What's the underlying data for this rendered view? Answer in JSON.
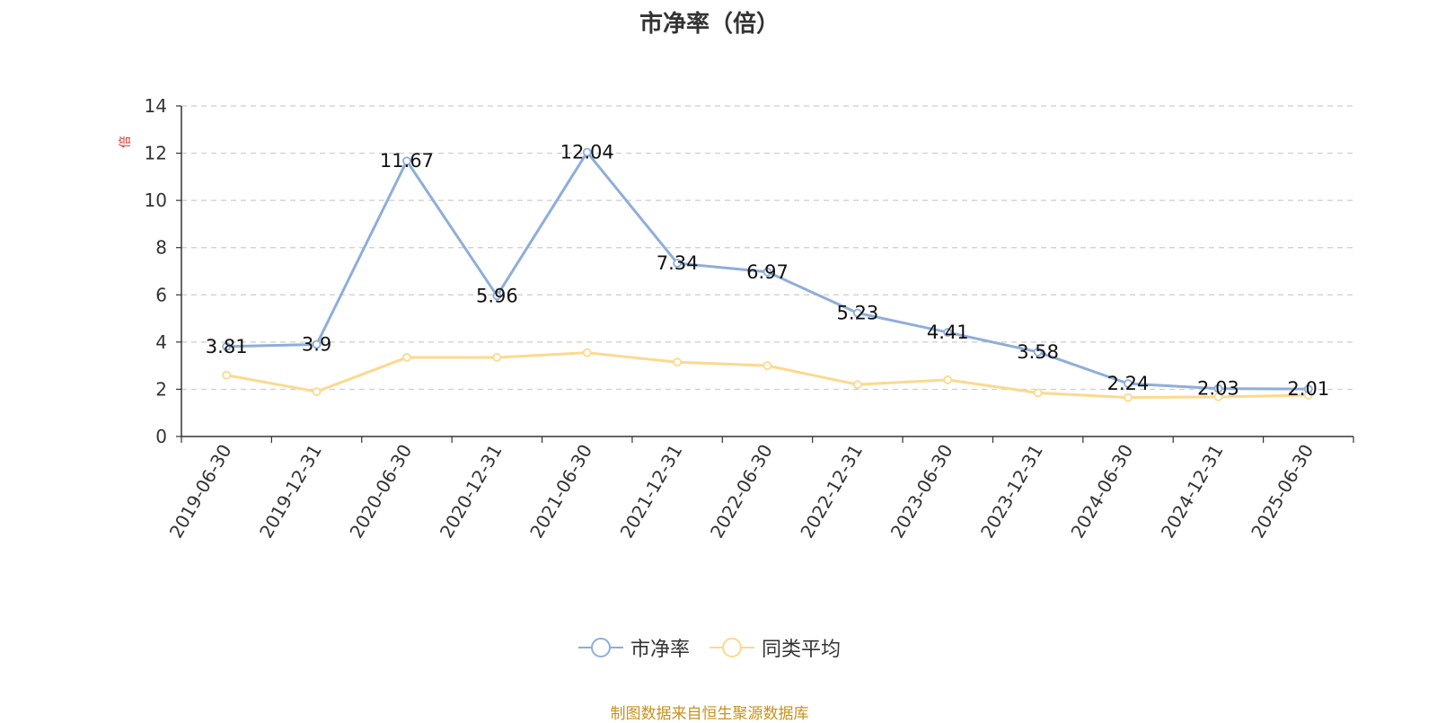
{
  "chart_data": {
    "type": "line",
    "title": "市净率（倍）",
    "ylabel": "倍",
    "ylim": [
      0,
      14
    ],
    "yticks": [
      0,
      2,
      4,
      6,
      8,
      10,
      12,
      14
    ],
    "grid": true,
    "legend_position": "bottom",
    "categories": [
      "2019-06-30",
      "2019-12-31",
      "2020-06-30",
      "2020-12-31",
      "2021-06-30",
      "2021-12-31",
      "2022-06-30",
      "2022-12-31",
      "2023-06-30",
      "2023-12-31",
      "2024-06-30",
      "2024-12-31",
      "2025-06-30"
    ],
    "series": [
      {
        "name": "市净率",
        "color": "#8eaed9",
        "values": [
          3.81,
          3.9,
          11.67,
          5.96,
          12.04,
          7.34,
          6.97,
          5.23,
          4.41,
          3.58,
          2.24,
          2.03,
          2.01
        ],
        "labels": [
          "3.81",
          "3.9",
          "11.67",
          "5.96",
          "12.04",
          "7.34",
          "6.97",
          "5.23",
          "4.41",
          "3.58",
          "2.24",
          "2.03",
          "2.01"
        ]
      },
      {
        "name": "同类平均",
        "color": "#fcd98e",
        "values": [
          2.6,
          1.9,
          3.35,
          3.35,
          3.55,
          3.15,
          3.0,
          2.2,
          2.4,
          1.85,
          1.65,
          1.68,
          1.75
        ]
      }
    ]
  },
  "source_note": "制图数据来自恒生聚源数据库"
}
